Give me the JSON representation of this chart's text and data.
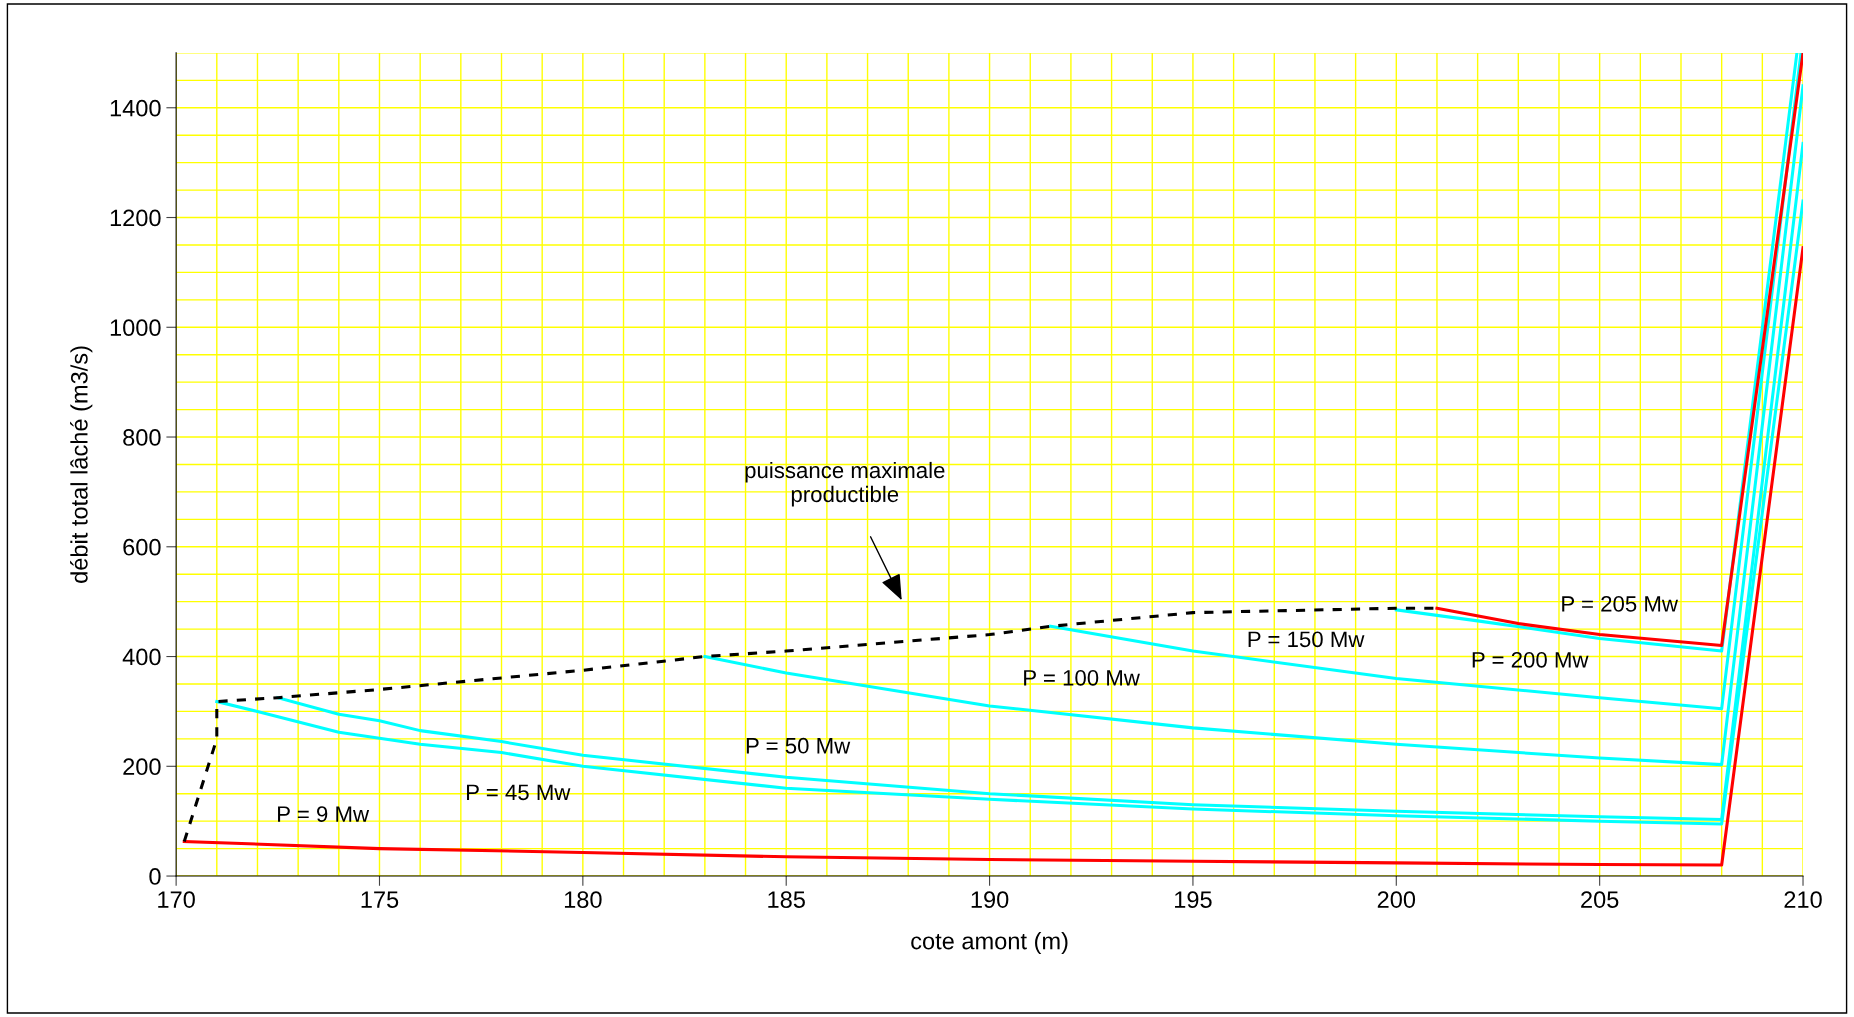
{
  "chart_data": {
    "type": "line",
    "xlabel": "cote amont (m)",
    "ylabel": "débit total lâché (m3/s)",
    "xlim": [
      170,
      210
    ],
    "xticks": [
      170,
      175,
      180,
      185,
      190,
      195,
      200,
      205,
      210
    ],
    "ylim": [
      0,
      1500
    ],
    "yticks": [
      0,
      200,
      400,
      600,
      800,
      1000,
      1200,
      1400
    ],
    "grid": true,
    "legend": false,
    "marker": "none",
    "series": [
      {
        "name": "P = 9 Mw",
        "color": "#ff0000",
        "x": [
          170.2,
          175,
          180,
          185,
          190,
          195,
          200,
          205,
          208,
          210
        ],
        "values": [
          63,
          50,
          43,
          35,
          30,
          27,
          24,
          21,
          20,
          1145
        ]
      },
      {
        "name": "P = 45 Mw",
        "color": "#00ffff",
        "x": [
          171,
          172,
          174,
          176,
          178,
          180,
          185,
          190,
          195,
          200,
          205,
          208,
          210
        ],
        "values": [
          318,
          300,
          262,
          240,
          225,
          200,
          160,
          140,
          122,
          110,
          100,
          95,
          1230
        ]
      },
      {
        "name": "P = 50 Mw",
        "color": "#00ffff",
        "x": [
          172.5,
          174,
          175,
          176,
          178,
          180,
          185,
          190,
          195,
          200,
          205,
          208,
          210
        ],
        "values": [
          325,
          295,
          283,
          265,
          245,
          220,
          180,
          150,
          130,
          118,
          108,
          103,
          1335
        ]
      },
      {
        "name": "P = 100 Mw",
        "color": "#00ffff",
        "x": [
          183,
          185,
          190,
          195,
          200,
          205,
          208,
          210
        ],
        "values": [
          400,
          370,
          310,
          270,
          240,
          215,
          203,
          1440
        ]
      },
      {
        "name": "P = 150 Mw",
        "color": "#00ffff",
        "x": [
          191.5,
          195,
          200,
          205,
          208,
          209.95
        ],
        "values": [
          455,
          410,
          360,
          325,
          305,
          1500
        ]
      },
      {
        "name": "P = 200 Mw",
        "color": "#00ffff",
        "x": [
          200,
          202,
          205,
          208,
          209.85
        ],
        "values": [
          485,
          465,
          433,
          410,
          1500
        ]
      },
      {
        "name": "P = 205 Mw",
        "color": "#ff0000",
        "x": [
          201,
          203,
          205,
          208,
          210
        ],
        "values": [
          488,
          460,
          440,
          420,
          1500
        ]
      },
      {
        "color": "#000000",
        "line_style": "dashed",
        "x": [
          170.2,
          171,
          171,
          172.5,
          175,
          180,
          183,
          185,
          190,
          191.5,
          195,
          200,
          201
        ],
        "values": [
          63,
          250,
          318,
          325,
          340,
          375,
          400,
          410,
          440,
          455,
          480,
          488,
          488
        ]
      }
    ],
    "annotations": [
      "puissance maximale\nproductible"
    ]
  }
}
